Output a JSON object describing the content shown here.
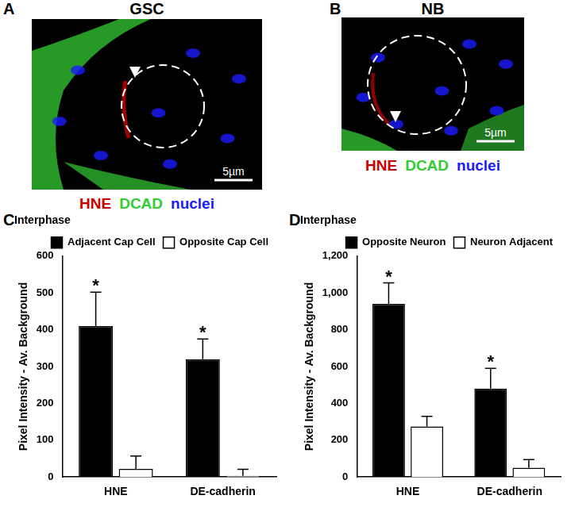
{
  "image_panels": [
    {
      "panel": "A",
      "title": "GSC",
      "scale_bar": "5µm",
      "labels": [
        {
          "text": "HNE",
          "color": "#cc0000"
        },
        {
          "text": "DCAD",
          "color": "#33cc33"
        },
        {
          "text": "nuclei",
          "color": "#1a1aff"
        }
      ]
    },
    {
      "panel": "B",
      "title": "NB",
      "scale_bar": "5µm",
      "labels": [
        {
          "text": "HNE",
          "color": "#cc0000"
        },
        {
          "text": "DCAD",
          "color": "#33cc33"
        },
        {
          "text": "nuclei",
          "color": "#1a1aff"
        }
      ]
    }
  ],
  "chart_data": [
    {
      "type": "bar",
      "panel": "C",
      "title": "Interphase",
      "y_label": "Pixel Intensity - Av. Background",
      "categories": [
        "HNE",
        "DE-cadherin"
      ],
      "series": [
        {
          "name": "Adjacent Cap Cell",
          "color": "#000000",
          "values": [
            410,
            320
          ],
          "errors": [
            92,
            55
          ]
        },
        {
          "name": "Opposite Cap Cell",
          "color": "#ffffff",
          "values": [
            22,
            3
          ],
          "errors": [
            35,
            18
          ]
        }
      ],
      "annotations": [
        {
          "text": "*",
          "series": 0,
          "category": 0
        },
        {
          "text": "*",
          "series": 0,
          "category": 1
        }
      ],
      "ylim": [
        0,
        600
      ],
      "yticks": [
        0,
        100,
        200,
        300,
        400,
        500,
        600
      ],
      "grid": false,
      "legend": "top"
    },
    {
      "type": "bar",
      "panel": "D",
      "title": "Interphase",
      "y_label": "Pixel Intensity - Av. Background",
      "categories": [
        "HNE",
        "DE-cadherin"
      ],
      "series": [
        {
          "name": "Opposite Neuron",
          "color": "#000000",
          "values": [
            940,
            480
          ],
          "errors": [
            115,
            110
          ]
        },
        {
          "name": "Neuron Adjacent",
          "color": "#ffffff",
          "values": [
            275,
            50
          ],
          "errors": [
            55,
            45
          ]
        }
      ],
      "annotations": [
        {
          "text": "*",
          "series": 0,
          "category": 0
        },
        {
          "text": "*",
          "series": 0,
          "category": 1
        }
      ],
      "ylim": [
        0,
        1200
      ],
      "yticks": [
        0,
        200,
        400,
        600,
        800,
        1000,
        1200
      ],
      "grid": false,
      "legend": "top"
    }
  ]
}
